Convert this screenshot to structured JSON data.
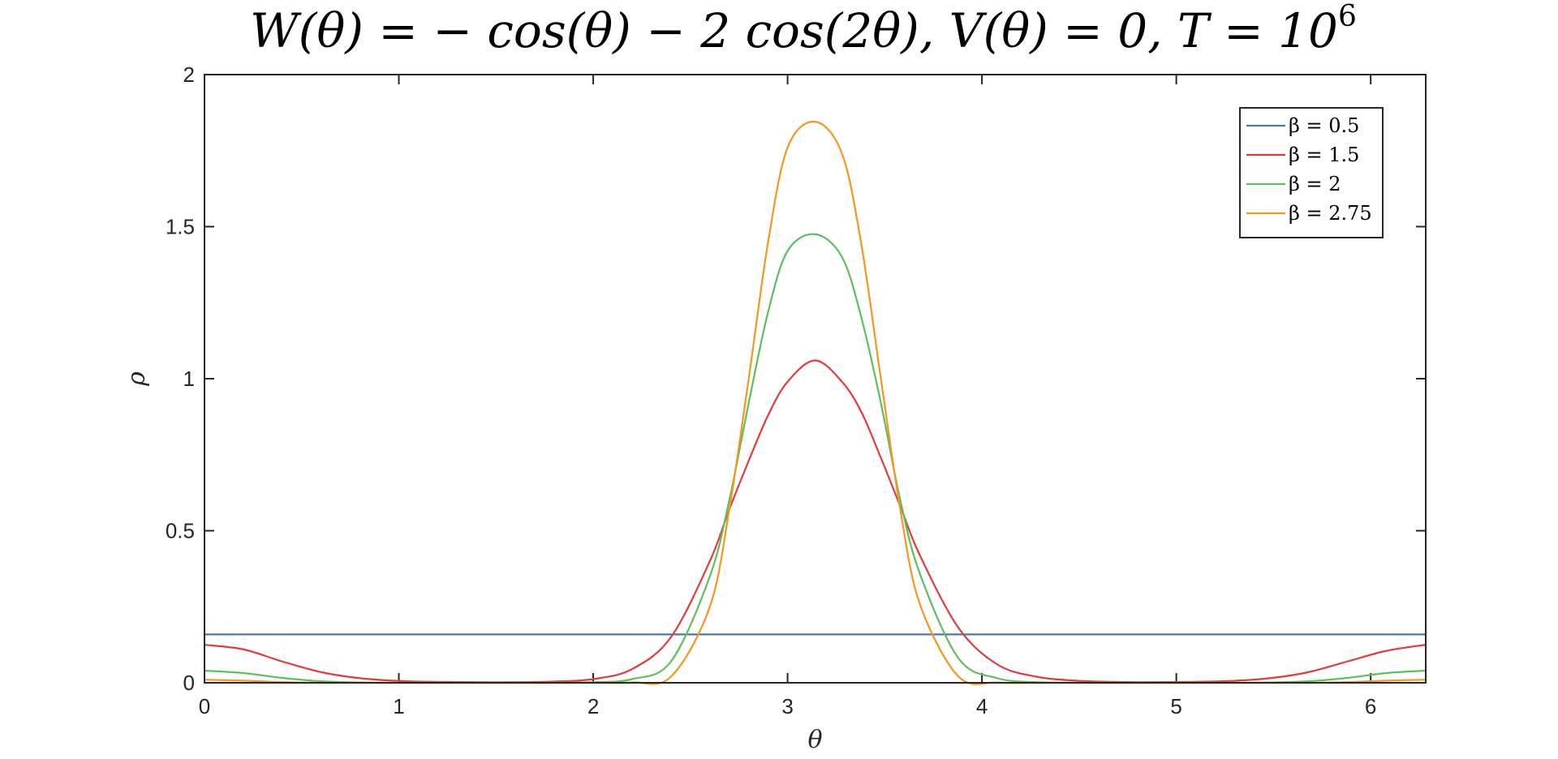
{
  "chart_data": {
    "type": "line",
    "title": "W(θ) = − cos(θ) − 2 cos(2θ), V(θ) = 0, T = 10",
    "title_superscript": "6",
    "xlabel": "θ",
    "ylabel": "ρ",
    "xlim": [
      0,
      6.2832
    ],
    "ylim": [
      0,
      2
    ],
    "x_ticks": [
      0,
      1,
      2,
      3,
      4,
      5,
      6
    ],
    "x_tick_labels": [
      "0",
      "1",
      "2",
      "3",
      "4",
      "5",
      "6"
    ],
    "y_ticks": [
      0,
      0.5,
      1,
      1.5,
      2
    ],
    "y_tick_labels": [
      "0",
      "0.5",
      "1",
      "1.5",
      "2"
    ],
    "grid": false,
    "legend_position": "top-right",
    "x": [
      0,
      0.2,
      0.4,
      0.6,
      0.8,
      1.0,
      1.2,
      1.4,
      1.6,
      1.8,
      2.0,
      2.2,
      2.4,
      2.6,
      2.7,
      2.8,
      2.9,
      3.0,
      3.1416,
      3.28,
      3.38,
      3.48,
      3.58,
      3.68,
      3.88,
      4.08,
      4.28,
      4.48,
      4.68,
      4.88,
      5.08,
      5.28,
      5.48,
      5.68,
      5.88,
      6.08,
      6.2832
    ],
    "series": [
      {
        "name": "β = 0.5",
        "color": "#4878a8",
        "values": [
          0.159,
          0.159,
          0.159,
          0.159,
          0.159,
          0.159,
          0.159,
          0.159,
          0.159,
          0.159,
          0.159,
          0.159,
          0.159,
          0.159,
          0.159,
          0.159,
          0.159,
          0.159,
          0.159,
          0.159,
          0.159,
          0.159,
          0.159,
          0.159,
          0.159,
          0.159,
          0.159,
          0.159,
          0.159,
          0.159,
          0.159,
          0.159,
          0.159,
          0.159,
          0.159,
          0.159,
          0.159
        ]
      },
      {
        "name": "β = 1.5",
        "color": "#e03c3c",
        "values": [
          0.125,
          0.11,
          0.07,
          0.035,
          0.015,
          0.006,
          0.003,
          0.002,
          0.002,
          0.004,
          0.012,
          0.045,
          0.15,
          0.4,
          0.57,
          0.73,
          0.88,
          0.99,
          1.06,
          0.99,
          0.89,
          0.74,
          0.58,
          0.42,
          0.18,
          0.06,
          0.02,
          0.007,
          0.003,
          0.002,
          0.003,
          0.006,
          0.015,
          0.035,
          0.07,
          0.105,
          0.125
        ]
      },
      {
        "name": "β = 2",
        "color": "#5cbf5c",
        "values": [
          0.04,
          0.032,
          0.016,
          0.005,
          0.001,
          0,
          0,
          0,
          0,
          0,
          0.002,
          0.012,
          0.07,
          0.35,
          0.6,
          0.92,
          1.22,
          1.42,
          1.475,
          1.4,
          1.2,
          0.92,
          0.6,
          0.36,
          0.08,
          0.015,
          0.002,
          0,
          0,
          0,
          0,
          0,
          0.001,
          0.005,
          0.016,
          0.032,
          0.04
        ]
      },
      {
        "name": "β = 2.75",
        "color": "#f5961e",
        "values": [
          0.01,
          0.007,
          0.002,
          0,
          0,
          0,
          0,
          0,
          0,
          0,
          0,
          0.001,
          0.02,
          0.25,
          0.57,
          1.0,
          1.45,
          1.76,
          1.845,
          1.74,
          1.44,
          1.0,
          0.57,
          0.26,
          0.02,
          0.001,
          0,
          0,
          0,
          0,
          0,
          0,
          0,
          0,
          0.002,
          0.007,
          0.01
        ]
      }
    ]
  }
}
